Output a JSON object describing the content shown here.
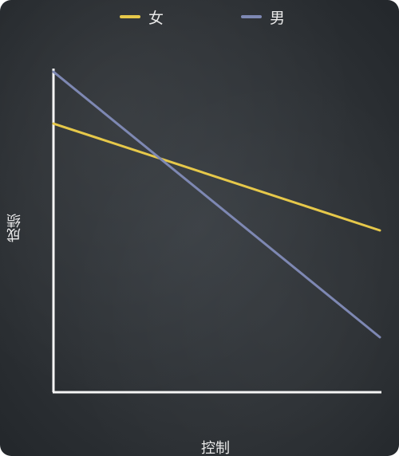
{
  "chart_data": {
    "type": "line",
    "xlabel": "控制",
    "ylabel": "成绩",
    "legend_position": "top",
    "grid": false,
    "x": [
      0,
      1
    ],
    "ylim": [
      0,
      1
    ],
    "series": [
      {
        "name": "女",
        "color": "#e6c84a",
        "values": [
          0.83,
          0.5
        ]
      },
      {
        "name": "男",
        "color": "#7e88b3",
        "values": [
          0.99,
          0.17
        ]
      }
    ]
  }
}
